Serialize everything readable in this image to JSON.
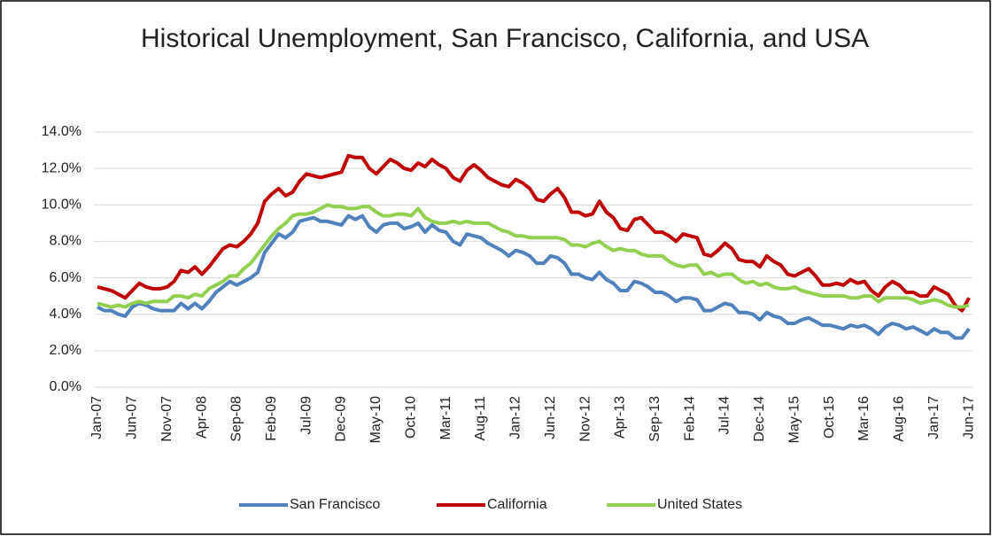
{
  "chart_data": {
    "type": "line",
    "title": "Historical Unemployment, San Francisco, California, and USA",
    "categories": [
      "Jan-07",
      null,
      null,
      null,
      null,
      "Jun-07",
      null,
      null,
      null,
      null,
      "Nov-07",
      null,
      null,
      null,
      null,
      "Apr-08",
      null,
      null,
      null,
      null,
      "Sep-08",
      null,
      null,
      null,
      null,
      "Feb-09",
      null,
      null,
      null,
      null,
      "Jul-09",
      null,
      null,
      null,
      null,
      "Dec-09",
      null,
      null,
      null,
      null,
      "May-10",
      null,
      null,
      null,
      null,
      "Oct-10",
      null,
      null,
      null,
      null,
      "Mar-11",
      null,
      null,
      null,
      null,
      "Aug-11",
      null,
      null,
      null,
      null,
      "Jan-12",
      null,
      null,
      null,
      null,
      "Jun-12",
      null,
      null,
      null,
      null,
      "Nov-12",
      null,
      null,
      null,
      null,
      "Apr-13",
      null,
      null,
      null,
      null,
      "Sep-13",
      null,
      null,
      null,
      null,
      "Feb-14",
      null,
      null,
      null,
      null,
      "Jul-14",
      null,
      null,
      null,
      null,
      "Dec-14",
      null,
      null,
      null,
      null,
      "May-15",
      null,
      null,
      null,
      null,
      "Oct-15",
      null,
      null,
      null,
      null,
      "Mar-16",
      null,
      null,
      null,
      null,
      "Aug-16",
      null,
      null,
      null,
      null,
      "Jan-17",
      null,
      null,
      null,
      null,
      "Jun-17"
    ],
    "series": [
      {
        "name": "San Francisco",
        "color": "#4f81bd",
        "values": [
          4.4,
          4.2,
          4.2,
          4.0,
          3.9,
          4.4,
          4.6,
          4.5,
          4.3,
          4.2,
          4.2,
          4.2,
          4.6,
          4.3,
          4.6,
          4.3,
          4.7,
          5.2,
          5.5,
          5.8,
          5.6,
          5.8,
          6.0,
          6.3,
          7.4,
          7.9,
          8.4,
          8.2,
          8.5,
          9.1,
          9.2,
          9.3,
          9.1,
          9.1,
          9.0,
          8.9,
          9.4,
          9.2,
          9.4,
          8.8,
          8.5,
          8.9,
          9.0,
          9.0,
          8.7,
          8.8,
          9.0,
          8.5,
          8.9,
          8.6,
          8.5,
          8.0,
          7.8,
          8.4,
          8.3,
          8.2,
          7.9,
          7.7,
          7.5,
          7.2,
          7.5,
          7.4,
          7.2,
          6.8,
          6.8,
          7.2,
          7.1,
          6.8,
          6.2,
          6.2,
          6.0,
          5.9,
          6.3,
          5.9,
          5.7,
          5.3,
          5.3,
          5.8,
          5.7,
          5.5,
          5.2,
          5.2,
          5.0,
          4.7,
          4.9,
          4.9,
          4.8,
          4.2,
          4.2,
          4.4,
          4.6,
          4.5,
          4.1,
          4.1,
          4.0,
          3.7,
          4.1,
          3.9,
          3.8,
          3.5,
          3.5,
          3.7,
          3.8,
          3.6,
          3.4,
          3.4,
          3.3,
          3.2,
          3.4,
          3.3,
          3.4,
          3.2,
          2.9,
          3.3,
          3.5,
          3.4,
          3.2,
          3.3,
          3.1,
          2.9,
          3.2,
          3.0,
          3.0,
          2.7,
          2.7,
          3.2
        ]
      },
      {
        "name": "California",
        "color": "#c00000",
        "values": [
          5.5,
          5.4,
          5.3,
          5.1,
          4.9,
          5.3,
          5.7,
          5.5,
          5.4,
          5.4,
          5.5,
          5.8,
          6.4,
          6.3,
          6.6,
          6.2,
          6.6,
          7.1,
          7.6,
          7.8,
          7.7,
          8.0,
          8.4,
          9.0,
          10.2,
          10.6,
          10.9,
          10.5,
          10.7,
          11.3,
          11.7,
          11.6,
          11.5,
          11.6,
          11.7,
          11.8,
          12.7,
          12.6,
          12.6,
          12.0,
          11.7,
          12.1,
          12.5,
          12.3,
          12.0,
          11.9,
          12.3,
          12.1,
          12.5,
          12.2,
          12.0,
          11.5,
          11.3,
          11.9,
          12.2,
          11.9,
          11.5,
          11.3,
          11.1,
          11.0,
          11.4,
          11.2,
          10.9,
          10.3,
          10.2,
          10.6,
          10.9,
          10.4,
          9.6,
          9.6,
          9.4,
          9.5,
          10.2,
          9.6,
          9.3,
          8.7,
          8.6,
          9.2,
          9.3,
          8.9,
          8.5,
          8.5,
          8.3,
          8.0,
          8.4,
          8.3,
          8.2,
          7.3,
          7.2,
          7.5,
          7.9,
          7.6,
          7.0,
          6.9,
          6.9,
          6.6,
          7.2,
          6.9,
          6.7,
          6.2,
          6.1,
          6.3,
          6.5,
          6.1,
          5.6,
          5.6,
          5.7,
          5.6,
          5.9,
          5.7,
          5.8,
          5.3,
          5.0,
          5.5,
          5.8,
          5.6,
          5.2,
          5.2,
          5.0,
          5.0,
          5.5,
          5.3,
          5.1,
          4.5,
          4.2,
          4.9
        ]
      },
      {
        "name": "United States",
        "color": "#92d050",
        "values": [
          4.6,
          4.5,
          4.4,
          4.5,
          4.4,
          4.6,
          4.7,
          4.6,
          4.7,
          4.7,
          4.7,
          5.0,
          5.0,
          4.9,
          5.1,
          5.0,
          5.4,
          5.6,
          5.8,
          6.1,
          6.1,
          6.5,
          6.8,
          7.3,
          7.8,
          8.3,
          8.7,
          9.0,
          9.4,
          9.5,
          9.5,
          9.6,
          9.8,
          10.0,
          9.9,
          9.9,
          9.8,
          9.8,
          9.9,
          9.9,
          9.6,
          9.4,
          9.4,
          9.5,
          9.5,
          9.4,
          9.8,
          9.3,
          9.1,
          9.0,
          9.0,
          9.1,
          9.0,
          9.1,
          9.0,
          9.0,
          9.0,
          8.8,
          8.6,
          8.5,
          8.3,
          8.3,
          8.2,
          8.2,
          8.2,
          8.2,
          8.2,
          8.1,
          7.8,
          7.8,
          7.7,
          7.9,
          8.0,
          7.7,
          7.5,
          7.6,
          7.5,
          7.5,
          7.3,
          7.2,
          7.2,
          7.2,
          6.9,
          6.7,
          6.6,
          6.7,
          6.7,
          6.2,
          6.3,
          6.1,
          6.2,
          6.2,
          5.9,
          5.7,
          5.8,
          5.6,
          5.7,
          5.5,
          5.4,
          5.4,
          5.5,
          5.3,
          5.2,
          5.1,
          5.0,
          5.0,
          5.0,
          5.0,
          4.9,
          4.9,
          5.0,
          5.0,
          4.7,
          4.9,
          4.9,
          4.9,
          4.9,
          4.8,
          4.6,
          4.7,
          4.8,
          4.7,
          4.5,
          4.4,
          4.4,
          4.5
        ]
      }
    ],
    "ylim": [
      0,
      14
    ],
    "yticks": [
      {
        "value": 0,
        "label": "0.0%"
      },
      {
        "value": 2,
        "label": "2.0%"
      },
      {
        "value": 4,
        "label": "4.0%"
      },
      {
        "value": 6,
        "label": "6.0%"
      },
      {
        "value": 8,
        "label": "8.0%"
      },
      {
        "value": 10,
        "label": "10.0%"
      },
      {
        "value": 12,
        "label": "12.0%"
      },
      {
        "value": 14,
        "label": "14.0%"
      }
    ],
    "grid": true,
    "legend": "bottom"
  }
}
